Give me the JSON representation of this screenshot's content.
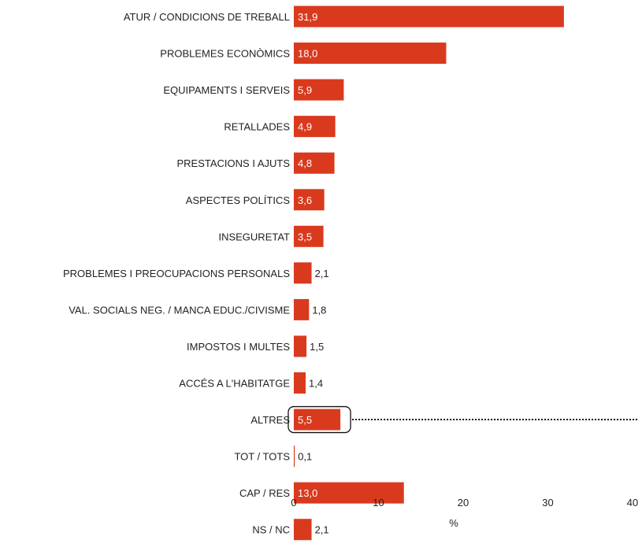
{
  "chart_data": {
    "type": "bar",
    "orientation": "horizontal",
    "categories": [
      "ATUR / CONDICIONS DE TREBALL",
      "PROBLEMES ECONÒMICS",
      "EQUIPAMENTS I SERVEIS",
      "RETALLADES",
      "PRESTACIONS I AJUTS",
      "ASPECTES POLÍTICS",
      "INSEGURETAT",
      "PROBLEMES I PREOCUPACIONS PERSONALS",
      "VAL. SOCIALS NEG. / MANCA EDUC./CIVISME",
      "IMPOSTOS I MULTES",
      "ACCÉS A L'HABITATGE",
      "ALTRES",
      "TOT / TOTS",
      "CAP / RES",
      "NS / NC"
    ],
    "values": [
      31.9,
      18.0,
      5.9,
      4.9,
      4.8,
      3.6,
      3.5,
      2.1,
      1.8,
      1.5,
      1.4,
      5.5,
      0.1,
      13.0,
      2.1
    ],
    "value_labels": [
      "31,9",
      "18,0",
      "5,9",
      "4,9",
      "4,8",
      "3,6",
      "3,5",
      "2,1",
      "1,8",
      "1,5",
      "1,4",
      "5,5",
      "0,1",
      "13,0",
      "2,1"
    ],
    "highlighted_category": "ALTRES",
    "xlabel": "%",
    "xlim": [
      0,
      40
    ],
    "xticks": [
      "0",
      "10",
      "20",
      "30",
      "40"
    ],
    "grid": false,
    "bar_color": "#d93a1e",
    "label_color_inside": "#ffffff",
    "label_color_outside": "#222222"
  }
}
